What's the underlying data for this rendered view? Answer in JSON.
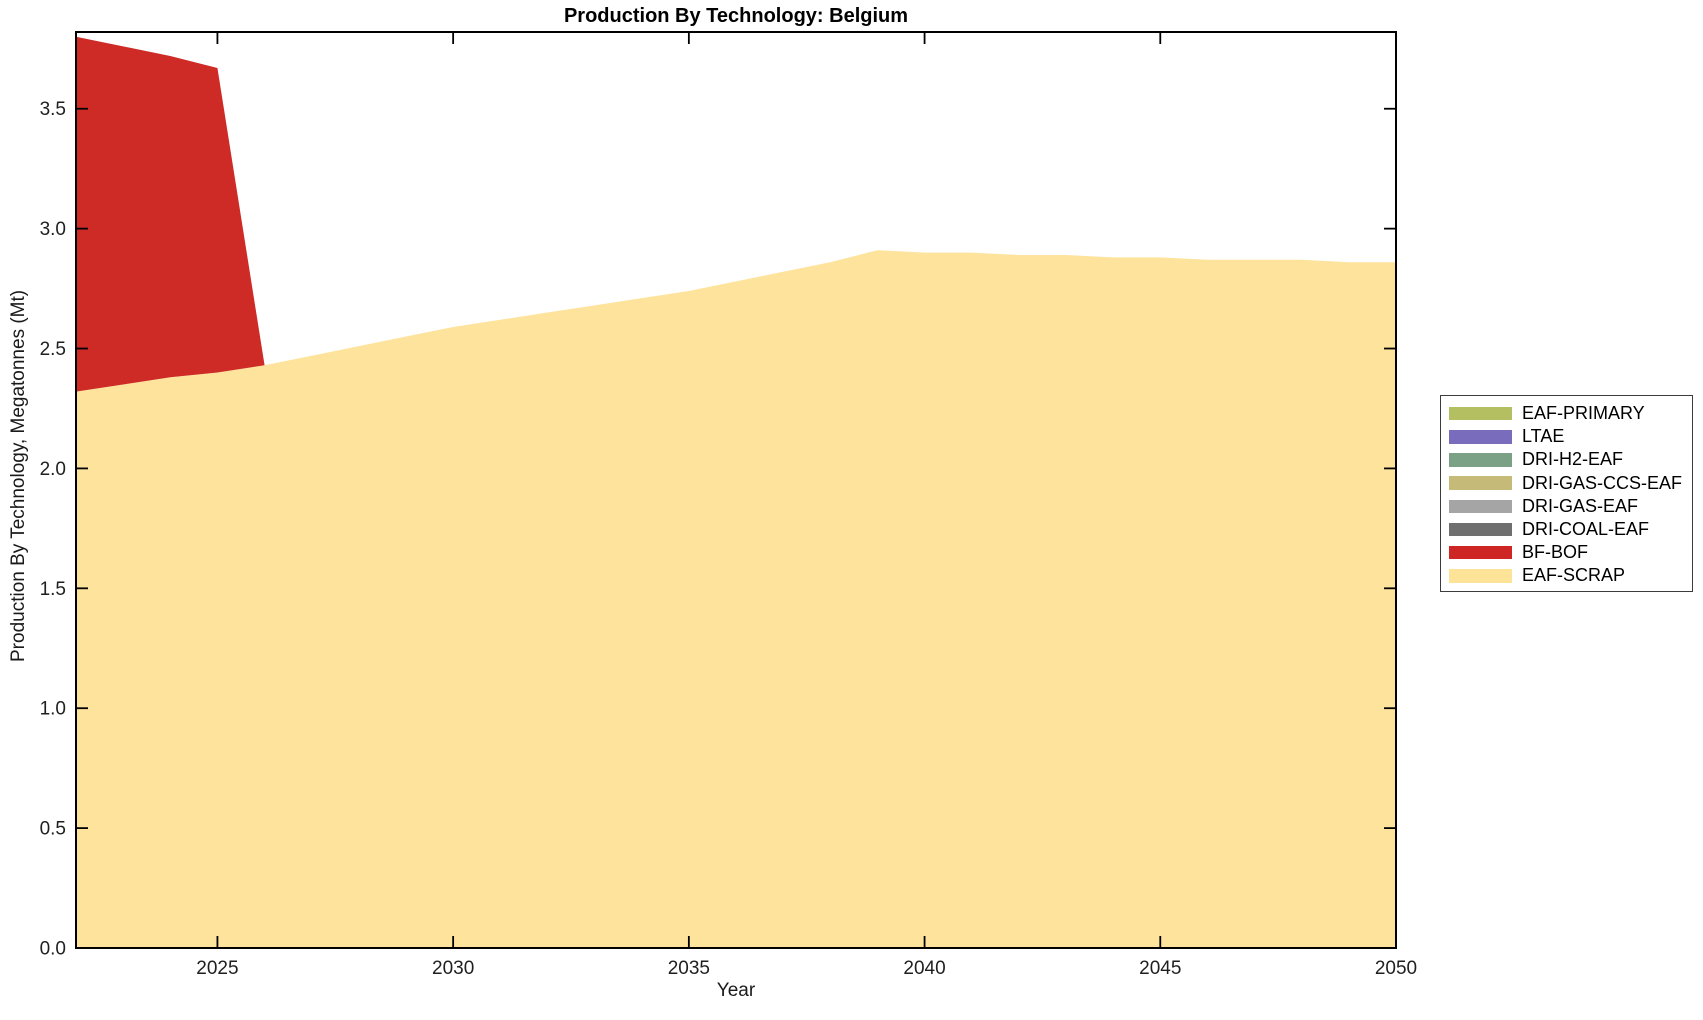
{
  "chart": {
    "title": "Production By Technology: Belgium",
    "xlabel": "Year",
    "ylabel": "Production By Technology, Megatonnes (Mt)",
    "axis_color": "#000000",
    "tick_label_color": "#1f1f1f"
  },
  "chart_data": {
    "type": "area",
    "stacked": true,
    "title": "Production By Technology: Belgium",
    "xlabel": "Year",
    "ylabel": "Production By Technology, Megatonnes (Mt)",
    "xlim": [
      2022,
      2050
    ],
    "ylim": [
      0,
      3.82
    ],
    "xticks": [
      2025,
      2030,
      2035,
      2040,
      2045,
      2050
    ],
    "xtick_labels": [
      "2025",
      "2030",
      "2035",
      "2040",
      "2045",
      "2050"
    ],
    "yticks": [
      0,
      0.5,
      1.0,
      1.5,
      2.0,
      2.5,
      3.0,
      3.5
    ],
    "ytick_labels": [
      "0.0",
      "0.5",
      "1.0",
      "1.5",
      "2.0",
      "2.5",
      "3.0",
      "3.5"
    ],
    "grid": false,
    "legend_position": "outside-right",
    "x": [
      2022,
      2023,
      2024,
      2025,
      2026,
      2027,
      2028,
      2029,
      2030,
      2031,
      2032,
      2033,
      2034,
      2035,
      2036,
      2037,
      2038,
      2039,
      2040,
      2041,
      2042,
      2043,
      2044,
      2045,
      2046,
      2047,
      2048,
      2049,
      2050
    ],
    "series": [
      {
        "name": "EAF-SCRAP",
        "color": "#FDE39B",
        "values": [
          2.32,
          2.35,
          2.38,
          2.4,
          2.43,
          2.47,
          2.51,
          2.55,
          2.59,
          2.62,
          2.65,
          2.68,
          2.71,
          2.74,
          2.78,
          2.82,
          2.86,
          2.91,
          2.9,
          2.9,
          2.89,
          2.89,
          2.88,
          2.88,
          2.87,
          2.87,
          2.87,
          2.86,
          2.86
        ]
      },
      {
        "name": "BF-BOF",
        "color": "#CE2A26",
        "values": [
          1.48,
          1.41,
          1.34,
          1.27,
          0,
          0,
          0,
          0,
          0,
          0,
          0,
          0,
          0,
          0,
          0,
          0,
          0,
          0,
          0,
          0,
          0,
          0,
          0,
          0,
          0,
          0,
          0,
          0,
          0
        ]
      },
      {
        "name": "DRI-COAL-EAF",
        "color": "#6F6F6F",
        "values": [
          0,
          0,
          0,
          0,
          0,
          0,
          0,
          0,
          0,
          0,
          0,
          0,
          0,
          0,
          0,
          0,
          0,
          0,
          0,
          0,
          0,
          0,
          0,
          0,
          0,
          0,
          0,
          0,
          0
        ]
      },
      {
        "name": "DRI-GAS-EAF",
        "color": "#A5A5A5",
        "values": [
          0,
          0,
          0,
          0,
          0,
          0,
          0,
          0,
          0,
          0,
          0,
          0,
          0,
          0,
          0,
          0,
          0,
          0,
          0,
          0,
          0,
          0,
          0,
          0,
          0,
          0,
          0,
          0,
          0
        ]
      },
      {
        "name": "DRI-GAS-CCS-EAF",
        "color": "#C5BA77",
        "values": [
          0,
          0,
          0,
          0,
          0,
          0,
          0,
          0,
          0,
          0,
          0,
          0,
          0,
          0,
          0,
          0,
          0,
          0,
          0,
          0,
          0,
          0,
          0,
          0,
          0,
          0,
          0,
          0,
          0
        ]
      },
      {
        "name": "DRI-H2-EAF",
        "color": "#7AA086",
        "values": [
          0,
          0,
          0,
          0,
          0,
          0,
          0,
          0,
          0,
          0,
          0,
          0,
          0,
          0,
          0,
          0,
          0,
          0,
          0,
          0,
          0,
          0,
          0,
          0,
          0,
          0,
          0,
          0,
          0
        ]
      },
      {
        "name": "LTAE",
        "color": "#7A6CBC",
        "values": [
          0,
          0,
          0,
          0,
          0,
          0,
          0,
          0,
          0,
          0,
          0,
          0,
          0,
          0,
          0,
          0,
          0,
          0,
          0,
          0,
          0,
          0,
          0,
          0,
          0,
          0,
          0,
          0,
          0
        ]
      },
      {
        "name": "EAF-PRIMARY",
        "color": "#B4BF62",
        "values": [
          0,
          0,
          0,
          0,
          0,
          0,
          0,
          0,
          0,
          0,
          0,
          0,
          0,
          0,
          0,
          0,
          0,
          0,
          0,
          0,
          0,
          0,
          0,
          0,
          0,
          0,
          0,
          0,
          0
        ]
      }
    ]
  },
  "legend": {
    "items": [
      {
        "label": "EAF-PRIMARY",
        "color": "#B4BF62"
      },
      {
        "label": "LTAE",
        "color": "#7A6CBC"
      },
      {
        "label": "DRI-H2-EAF",
        "color": "#7AA086"
      },
      {
        "label": "DRI-GAS-CCS-EAF",
        "color": "#C5BA77"
      },
      {
        "label": "DRI-GAS-EAF",
        "color": "#A5A5A5"
      },
      {
        "label": "DRI-COAL-EAF",
        "color": "#6F6F6F"
      },
      {
        "label": "BF-BOF",
        "color": "#CD2625"
      },
      {
        "label": "EAF-SCRAP",
        "color": "#FCE398"
      }
    ]
  }
}
